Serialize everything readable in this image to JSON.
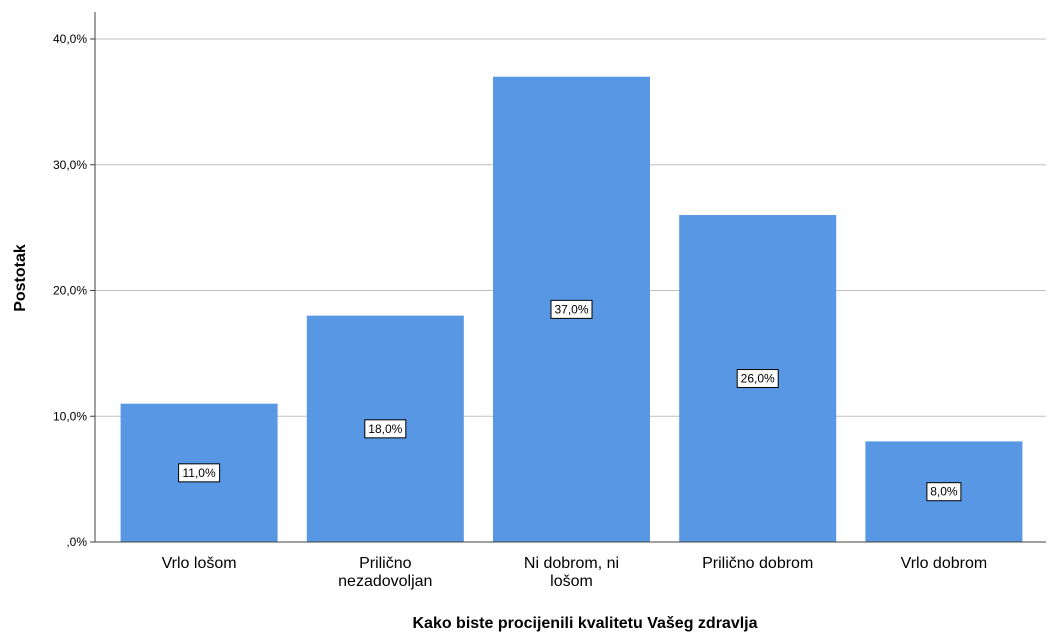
{
  "chart_data": {
    "type": "bar",
    "categories": [
      [
        "Vrlo lošom"
      ],
      [
        "Prilično",
        "nezadovoljan"
      ],
      [
        "Ni dobrom, ni",
        "lošom"
      ],
      [
        "Prilično dobrom"
      ],
      [
        "Vrlo dobrom"
      ]
    ],
    "values": [
      11.0,
      18.0,
      37.0,
      26.0,
      8.0
    ],
    "data_labels": [
      "11,0%",
      "18,0%",
      "37,0%",
      "26,0%",
      "8,0%"
    ],
    "yticks": [
      0,
      10,
      20,
      30,
      40
    ],
    "ytick_labels": [
      ",0%",
      "10,0%",
      "20,0%",
      "30,0%",
      "40,0%"
    ],
    "ylim": [
      0,
      40
    ],
    "xlabel": "Kako biste procijenili kvalitetu Vašeg  zdravlja",
    "ylabel": "Postotak",
    "title": "",
    "grid": true,
    "legend": "none",
    "bar_color": "#5797e3",
    "grid_color": "#c0c0c0",
    "axis_color": "#404040"
  }
}
